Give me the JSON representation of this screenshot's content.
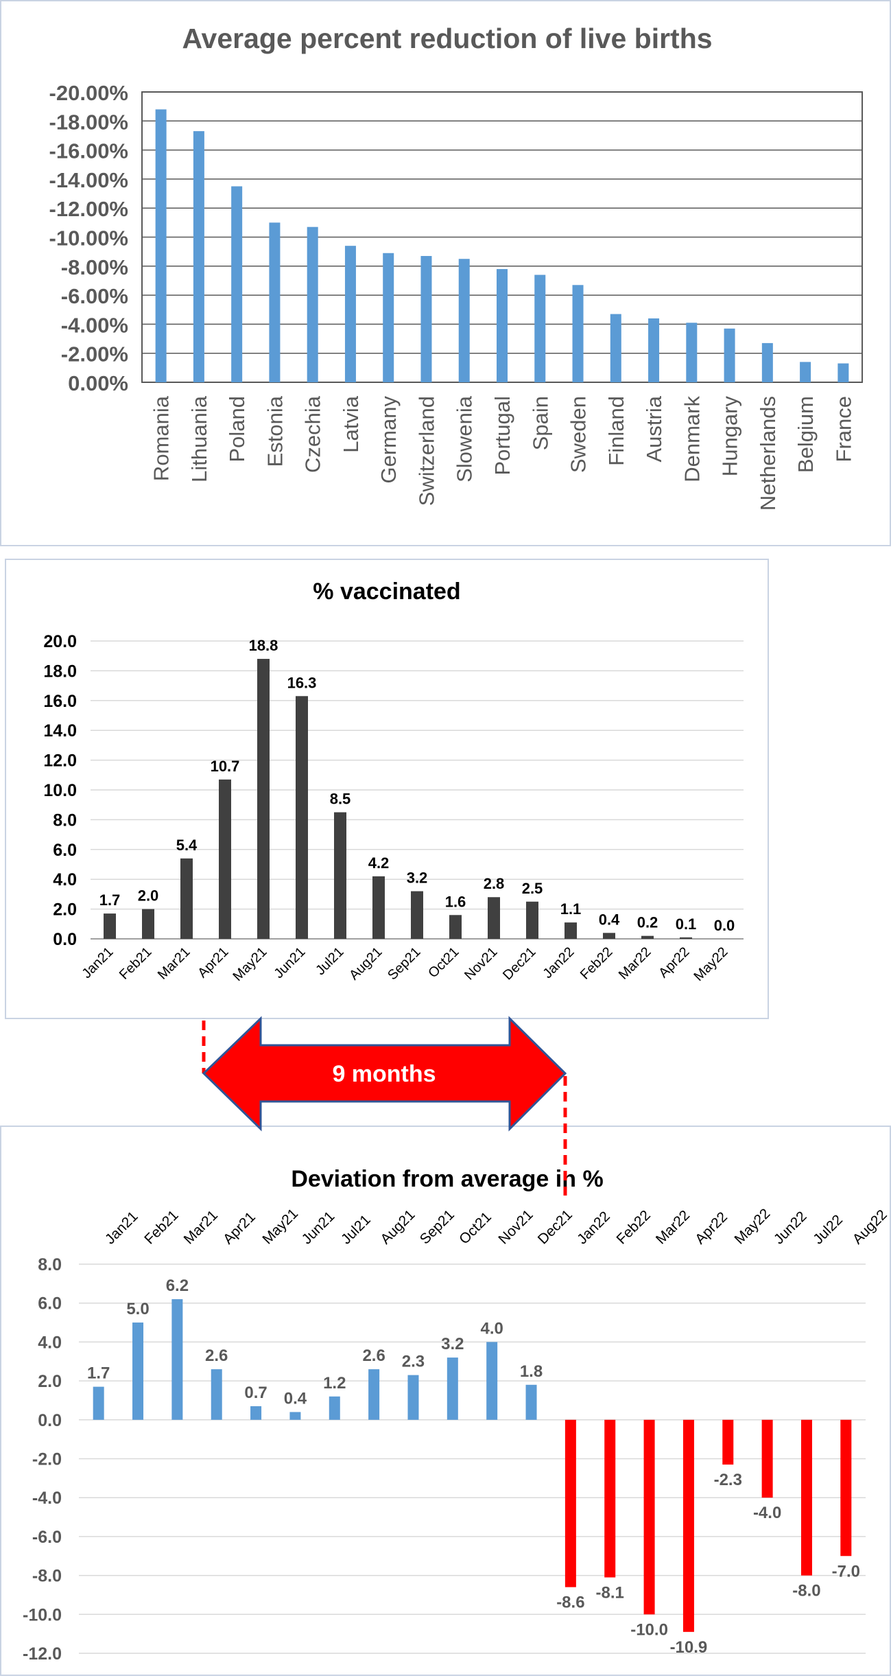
{
  "chart_data": [
    {
      "type": "bar",
      "title": "Average percent reduction of live births",
      "categories": [
        "Romania",
        "Lithuania",
        "Poland",
        "Estonia",
        "Czechia",
        "Latvia",
        "Germany",
        "Switzerland",
        "Slowenia",
        "Portugal",
        "Spain",
        "Sweden",
        "Finland",
        "Austria",
        "Denmark",
        "Hungary",
        "Netherlands",
        "Belgium",
        "France"
      ],
      "values": [
        -18.8,
        -17.3,
        -13.5,
        -11.0,
        -10.7,
        -9.4,
        -8.9,
        -8.7,
        -8.5,
        -7.8,
        -7.4,
        -6.7,
        -4.7,
        -4.4,
        -4.1,
        -3.7,
        -2.7,
        -1.4,
        -1.3
      ],
      "yticks": [
        "-20.00%",
        "-18.00%",
        "-16.00%",
        "-14.00%",
        "-12.00%",
        "-10.00%",
        "-8.00%",
        "-6.00%",
        "-4.00%",
        "-2.00%",
        "0.00%"
      ],
      "ylim": [
        0,
        -20
      ],
      "inverted_axis": true,
      "grid": true,
      "bar_color": "#5b9bd5"
    },
    {
      "type": "bar",
      "title": "% vaccinated",
      "categories": [
        "Jan21",
        "Feb21",
        "Mar21",
        "Apr21",
        "May21",
        "Jun21",
        "Jul21",
        "Aug21",
        "Sep21",
        "Oct21",
        "Nov21",
        "Dec21",
        "Jan22",
        "Feb22",
        "Mar22",
        "Apr22",
        "May22"
      ],
      "values": [
        1.7,
        2.0,
        5.4,
        10.7,
        18.8,
        16.3,
        8.5,
        4.2,
        3.2,
        1.6,
        2.8,
        2.5,
        1.1,
        0.4,
        0.2,
        0.1,
        0.0
      ],
      "labels": [
        "1.7",
        "2.0",
        "5.4",
        "10.7",
        "18.8",
        "16.3",
        "8.5",
        "4.2",
        "3.2",
        "1.6",
        "2.8",
        "2.5",
        "1.1",
        "0.4",
        "0.2",
        "0.1",
        "0.0"
      ],
      "yticks": [
        "20.0",
        "18.0",
        "16.0",
        "14.0",
        "12.0",
        "10.0",
        "8.0",
        "6.0",
        "4.0",
        "2.0",
        "0.0"
      ],
      "ylim": [
        0,
        20
      ],
      "grid": true,
      "bar_color": "#404040"
    },
    {
      "type": "bar",
      "title": "Deviation from average in %",
      "categories": [
        "Jan21",
        "Feb21",
        "Mar21",
        "Apr21",
        "May21",
        "Jun21",
        "Jul21",
        "Aug21",
        "Sep21",
        "Oct21",
        "Nov21",
        "Dec21",
        "Jan22",
        "Feb22",
        "Mar22",
        "Apr22",
        "May22",
        "Jun22",
        "Jul22",
        "Aug22"
      ],
      "values": [
        1.7,
        5.0,
        6.2,
        2.6,
        0.7,
        0.4,
        1.2,
        2.6,
        2.3,
        3.2,
        4.0,
        1.8,
        -8.6,
        -8.1,
        -10.0,
        -10.9,
        -2.3,
        -4.0,
        -8.0,
        -7.0
      ],
      "labels": [
        "1.7",
        "5.0",
        "6.2",
        "2.6",
        "0.7",
        "0.4",
        "1.2",
        "2.6",
        "2.3",
        "3.2",
        "4.0",
        "1.8",
        "-8.6",
        "-8.1",
        "-10.0",
        "-10.9",
        "-2.3",
        "-4.0",
        "-8.0",
        "-7.0"
      ],
      "yticks": [
        "8.0",
        "6.0",
        "4.0",
        "2.0",
        "0.0",
        "-2.0",
        "-4.0",
        "-6.0",
        "-8.0",
        "-10.0",
        "-12.0"
      ],
      "ylim": [
        -12,
        8
      ],
      "grid": true,
      "positive_color": "#5b9bd5",
      "negative_color": "#ff0000"
    }
  ],
  "annotation": {
    "label": "9 months",
    "arrow_color": "#ff0000",
    "from_category": "Apr21",
    "to_category": "Dec21"
  }
}
